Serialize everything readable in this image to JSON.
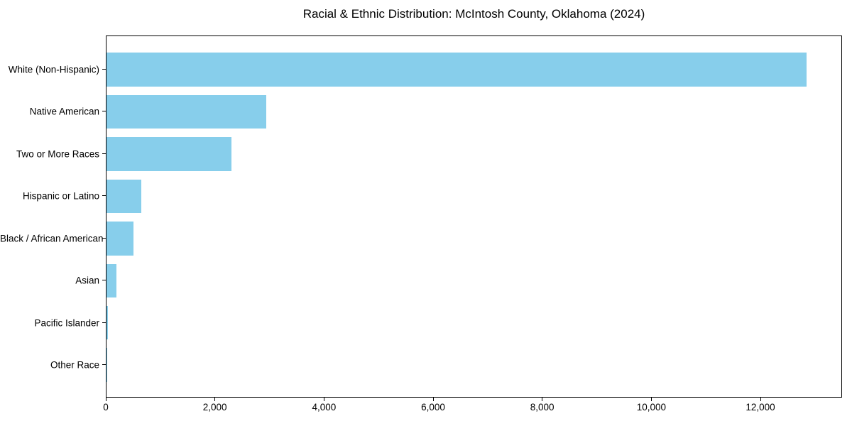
{
  "chart_data": {
    "type": "bar",
    "orientation": "horizontal",
    "title": "Racial & Ethnic Distribution: McIntosh County, Oklahoma (2024)",
    "categories": [
      "White (Non-Hispanic)",
      "Native American",
      "Two or More Races",
      "Hispanic or Latino",
      "Black / African American",
      "Asian",
      "Pacific Islander",
      "Other Race"
    ],
    "values": [
      12830,
      2925,
      2290,
      640,
      495,
      180,
      20,
      5
    ],
    "xlabel": "",
    "ylabel": "",
    "xlim": [
      0,
      13470
    ],
    "xticks": [
      {
        "value": 0,
        "label": "0"
      },
      {
        "value": 2000,
        "label": "2,000"
      },
      {
        "value": 4000,
        "label": "4,000"
      },
      {
        "value": 6000,
        "label": "6,000"
      },
      {
        "value": 8000,
        "label": "8,000"
      },
      {
        "value": 10000,
        "label": "10,000"
      },
      {
        "value": 12000,
        "label": "12,000"
      }
    ],
    "bar_color": "#87CEEB",
    "frame_color": "#000000",
    "background_color": "#FFFFFF",
    "grid": false,
    "legend": null
  }
}
